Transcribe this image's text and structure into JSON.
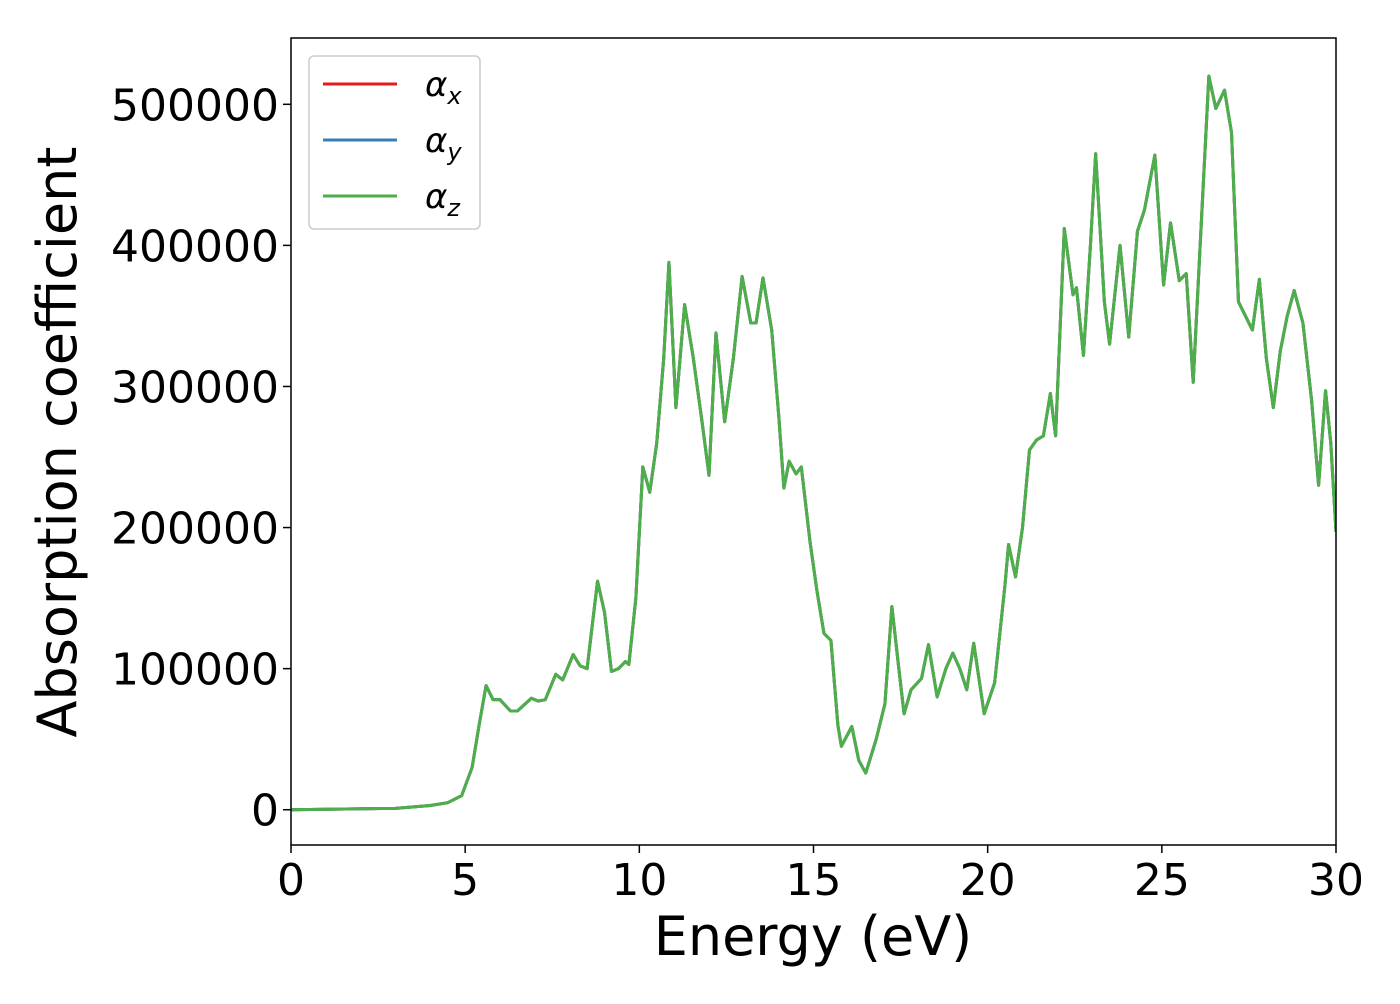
{
  "chart_data": {
    "type": "line",
    "xlabel": "Energy (eV)",
    "ylabel": "Absorption coefficient",
    "xlim": [
      0,
      30
    ],
    "ylim": [
      -25000,
      547000
    ],
    "xticks": [
      0,
      5,
      10,
      15,
      20,
      25,
      30
    ],
    "yticks": [
      0,
      100000,
      200000,
      300000,
      400000,
      500000
    ],
    "legend": "upper left",
    "x": [
      0,
      3,
      4,
      4.5,
      4.9,
      5.2,
      5.4,
      5.6,
      5.8,
      6.0,
      6.3,
      6.5,
      6.9,
      7.1,
      7.3,
      7.6,
      7.8,
      8.1,
      8.3,
      8.5,
      8.8,
      9.0,
      9.2,
      9.4,
      9.6,
      9.7,
      9.9,
      10.1,
      10.3,
      10.5,
      10.7,
      10.85,
      11.05,
      11.3,
      11.55,
      11.8,
      12.0,
      12.2,
      12.45,
      12.7,
      12.95,
      13.2,
      13.35,
      13.55,
      13.8,
      14.0,
      14.15,
      14.3,
      14.5,
      14.65,
      14.9,
      15.1,
      15.3,
      15.5,
      15.7,
      15.8,
      16.1,
      16.3,
      16.5,
      16.8,
      17.05,
      17.25,
      17.45,
      17.6,
      17.8,
      18.1,
      18.3,
      18.55,
      18.8,
      19.0,
      19.2,
      19.4,
      19.6,
      19.9,
      20.2,
      20.5,
      20.6,
      20.8,
      21.0,
      21.2,
      21.4,
      21.6,
      21.8,
      21.95,
      22.2,
      22.45,
      22.55,
      22.75,
      22.95,
      23.1,
      23.35,
      23.5,
      23.8,
      24.05,
      24.3,
      24.5,
      24.8,
      25.05,
      25.25,
      25.5,
      25.7,
      25.9,
      26.1,
      26.35,
      26.55,
      26.8,
      27.0,
      27.2,
      27.4,
      27.6,
      27.8,
      28.0,
      28.2,
      28.4,
      28.6,
      28.8,
      29.05,
      29.3,
      29.5,
      29.7,
      29.85,
      30
    ],
    "series": [
      {
        "name": "αx",
        "color": "#e41a1c",
        "values": [
          0,
          1000,
          3000,
          5000,
          10000,
          30000,
          60000,
          88000,
          78000,
          78000,
          70000,
          70000,
          79000,
          77000,
          78000,
          96000,
          92000,
          110000,
          102000,
          100000,
          162000,
          140000,
          98000,
          100000,
          105000,
          103000,
          150000,
          243000,
          225000,
          260000,
          320000,
          388000,
          285000,
          358000,
          320000,
          275000,
          237000,
          338000,
          275000,
          320000,
          378000,
          345000,
          345000,
          377000,
          340000,
          280000,
          228000,
          247000,
          238000,
          243000,
          190000,
          155000,
          125000,
          120000,
          60000,
          45000,
          59000,
          35000,
          26000,
          50000,
          75000,
          144000,
          100000,
          68000,
          85000,
          93000,
          117000,
          80000,
          100000,
          111000,
          100000,
          85000,
          118000,
          68000,
          90000,
          160000,
          188000,
          165000,
          200000,
          255000,
          262000,
          265000,
          295000,
          265000,
          412000,
          365000,
          370000,
          322000,
          400000,
          465000,
          360000,
          330000,
          400000,
          335000,
          410000,
          425000,
          464000,
          372000,
          416000,
          375000,
          380000,
          303000,
          400000,
          520000,
          497000,
          510000,
          480000,
          360000,
          350000,
          340000,
          376000,
          320000,
          285000,
          325000,
          350000,
          368000,
          345000,
          290000,
          230000,
          297000,
          260000,
          197000
        ]
      },
      {
        "name": "αy",
        "color": "#377eb8",
        "values": [
          0,
          1000,
          3000,
          5000,
          10000,
          30000,
          60000,
          88000,
          78000,
          78000,
          70000,
          70000,
          79000,
          77000,
          78000,
          96000,
          92000,
          110000,
          102000,
          100000,
          162000,
          140000,
          98000,
          100000,
          105000,
          103000,
          150000,
          243000,
          225000,
          260000,
          320000,
          388000,
          285000,
          358000,
          320000,
          275000,
          237000,
          338000,
          275000,
          320000,
          378000,
          345000,
          345000,
          377000,
          340000,
          280000,
          228000,
          247000,
          238000,
          243000,
          190000,
          155000,
          125000,
          120000,
          60000,
          45000,
          59000,
          35000,
          26000,
          50000,
          75000,
          144000,
          100000,
          68000,
          85000,
          93000,
          117000,
          80000,
          100000,
          111000,
          100000,
          85000,
          118000,
          68000,
          90000,
          160000,
          188000,
          165000,
          200000,
          255000,
          262000,
          265000,
          295000,
          265000,
          412000,
          365000,
          370000,
          322000,
          400000,
          465000,
          360000,
          330000,
          400000,
          335000,
          410000,
          425000,
          464000,
          372000,
          416000,
          375000,
          380000,
          303000,
          400000,
          520000,
          497000,
          510000,
          480000,
          360000,
          350000,
          340000,
          376000,
          320000,
          285000,
          325000,
          350000,
          368000,
          345000,
          290000,
          230000,
          297000,
          260000,
          197000
        ]
      },
      {
        "name": "αz",
        "color": "#4daf4a",
        "values": [
          0,
          1000,
          3000,
          5000,
          10000,
          30000,
          60000,
          88000,
          78000,
          78000,
          70000,
          70000,
          79000,
          77000,
          78000,
          96000,
          92000,
          110000,
          102000,
          100000,
          162000,
          140000,
          98000,
          100000,
          105000,
          103000,
          150000,
          243000,
          225000,
          260000,
          320000,
          388000,
          285000,
          358000,
          320000,
          275000,
          237000,
          338000,
          275000,
          320000,
          378000,
          345000,
          345000,
          377000,
          340000,
          280000,
          228000,
          247000,
          238000,
          243000,
          190000,
          155000,
          125000,
          120000,
          60000,
          45000,
          59000,
          35000,
          26000,
          50000,
          75000,
          144000,
          100000,
          68000,
          85000,
          93000,
          117000,
          80000,
          100000,
          111000,
          100000,
          85000,
          118000,
          68000,
          90000,
          160000,
          188000,
          165000,
          200000,
          255000,
          262000,
          265000,
          295000,
          265000,
          412000,
          365000,
          370000,
          322000,
          400000,
          465000,
          360000,
          330000,
          400000,
          335000,
          410000,
          425000,
          464000,
          372000,
          416000,
          375000,
          380000,
          303000,
          400000,
          520000,
          497000,
          510000,
          480000,
          360000,
          350000,
          340000,
          376000,
          320000,
          285000,
          325000,
          350000,
          368000,
          345000,
          290000,
          230000,
          297000,
          260000,
          197000
        ]
      }
    ]
  }
}
